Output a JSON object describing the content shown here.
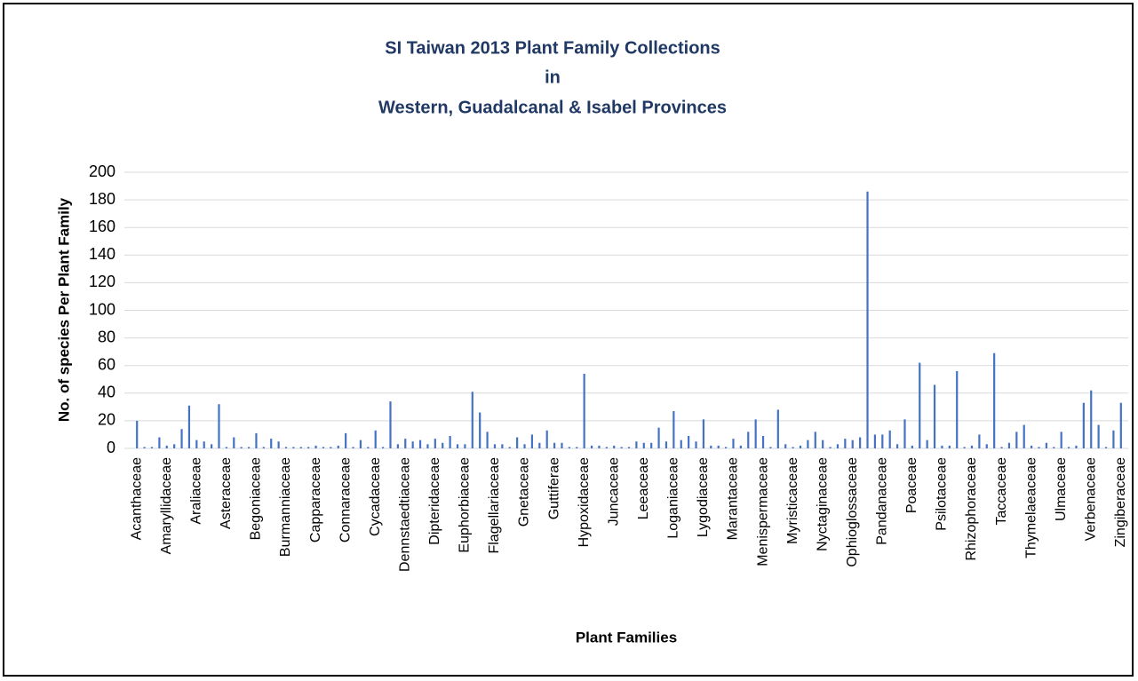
{
  "chart_data": {
    "type": "bar",
    "title": [
      "SI Taiwan 2013 Plant Family Collections",
      "in",
      "Western, Guadalcanal & Isabel Provinces"
    ],
    "y_label": "No. of species Per Plant Family",
    "x_label": "Plant Families",
    "color": "#4472c4",
    "grid": true,
    "ylim": [
      0,
      200
    ],
    "yticks": [
      0,
      20,
      40,
      60,
      80,
      100,
      120,
      140,
      160,
      180,
      200
    ],
    "categories": [
      "Acanthaceae",
      null,
      null,
      null,
      "Amaryllidaceae",
      null,
      null,
      null,
      "Araliaceae",
      null,
      null,
      null,
      "Asteraceae",
      null,
      null,
      null,
      "Begoniaceae",
      null,
      null,
      null,
      "Burmanniaceae",
      null,
      null,
      null,
      "Capparaceae",
      null,
      null,
      null,
      "Connaraceae",
      null,
      null,
      null,
      "Cycadaceae",
      null,
      null,
      null,
      "Dennstaedtiaceae",
      null,
      null,
      null,
      "Dipteridaceae",
      null,
      null,
      null,
      "Euphorbiaceae",
      null,
      null,
      null,
      "Flagellariaceae",
      null,
      null,
      null,
      "Gnetaceae",
      null,
      null,
      null,
      "Guttiferae",
      null,
      null,
      null,
      "Hypoxidaceae",
      null,
      null,
      null,
      "Juncaceae",
      null,
      null,
      null,
      "Leeaceae",
      null,
      null,
      null,
      "Loganiaceae",
      null,
      null,
      null,
      "Lygodiaceae",
      null,
      null,
      null,
      "Marantaceae",
      null,
      null,
      null,
      "Menispermaceae",
      null,
      null,
      null,
      "Myristicaceae",
      null,
      null,
      null,
      "Nyctaginaceae",
      null,
      null,
      null,
      "Ophioglossaceae",
      null,
      null,
      null,
      "Pandanaceae",
      null,
      null,
      null,
      "Poaceae",
      null,
      null,
      null,
      "Psilotaceae",
      null,
      null,
      null,
      "Rhizophoraceae",
      null,
      null,
      null,
      "Taccaceae",
      null,
      null,
      null,
      "Thymelaeaceae",
      null,
      null,
      null,
      "Ulmaceae",
      null,
      null,
      null,
      "Verbenaceae",
      null,
      null,
      null,
      "Zingiberaceae"
    ],
    "values": [
      20,
      1,
      1,
      8,
      2,
      3,
      14,
      31,
      6,
      5,
      3,
      32,
      1,
      8,
      1,
      1,
      11,
      1,
      7,
      5,
      1,
      1,
      1,
      1,
      2,
      1,
      1,
      2,
      11,
      1,
      6,
      1,
      13,
      1,
      34,
      3,
      7,
      5,
      6,
      3,
      7,
      4,
      9,
      3,
      3,
      41,
      26,
      12,
      3,
      3,
      1,
      8,
      3,
      10,
      4,
      13,
      4,
      4,
      1,
      1,
      54,
      2,
      2,
      1,
      2,
      1,
      1,
      5,
      4,
      4,
      15,
      5,
      27,
      6,
      9,
      5,
      21,
      2,
      2,
      1,
      7,
      2,
      12,
      21,
      9,
      1,
      28,
      3,
      1,
      2,
      6,
      12,
      6,
      1,
      3,
      7,
      6,
      8,
      186,
      10,
      10,
      13,
      3,
      21,
      2,
      62,
      6,
      46,
      2,
      2,
      56,
      1,
      2,
      10,
      3,
      69,
      1,
      4,
      12,
      17,
      2,
      1,
      4,
      1,
      12,
      1,
      2,
      33,
      42,
      17,
      1,
      13,
      33
    ]
  }
}
